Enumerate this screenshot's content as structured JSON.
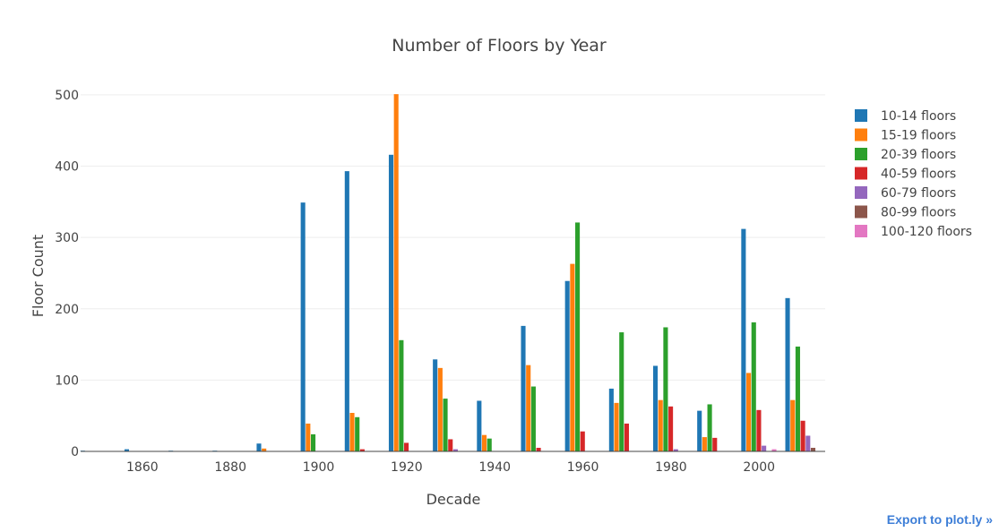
{
  "export_link": "Export to plot.ly »",
  "chart_data": {
    "type": "bar",
    "title": "Number of Floors by Year",
    "xlabel": "Decade",
    "ylabel": "Floor Count",
    "x": [
      1850,
      1860,
      1870,
      1880,
      1890,
      1900,
      1910,
      1920,
      1930,
      1940,
      1950,
      1960,
      1970,
      1980,
      1990,
      2000,
      2010
    ],
    "xticks": [
      1860,
      1880,
      1900,
      1920,
      1940,
      1960,
      1980,
      2000
    ],
    "xlim": [
      1846,
      2015
    ],
    "ylim": [
      0,
      520
    ],
    "yticks": [
      0,
      100,
      200,
      300,
      400,
      500
    ],
    "grid": true,
    "legend_position": "right",
    "series": [
      {
        "name": "10-14 floors",
        "color": "#1f77b4",
        "values": [
          1,
          3,
          1,
          1,
          11,
          349,
          393,
          416,
          129,
          71,
          176,
          239,
          88,
          120,
          57,
          312,
          215
        ]
      },
      {
        "name": "15-19 floors",
        "color": "#ff7f0e",
        "values": [
          0,
          0,
          0,
          0,
          4,
          39,
          54,
          501,
          117,
          23,
          121,
          263,
          68,
          72,
          20,
          110,
          72
        ]
      },
      {
        "name": "20-39 floors",
        "color": "#2ca02c",
        "values": [
          0,
          0,
          0,
          0,
          0,
          24,
          48,
          156,
          74,
          18,
          91,
          321,
          167,
          174,
          66,
          181,
          147
        ]
      },
      {
        "name": "40-59 floors",
        "color": "#d62728",
        "values": [
          0,
          0,
          0,
          0,
          0,
          0,
          3,
          12,
          17,
          0,
          5,
          28,
          39,
          63,
          19,
          58,
          43
        ]
      },
      {
        "name": "60-79 floors",
        "color": "#9467bd",
        "values": [
          0,
          0,
          0,
          0,
          0,
          0,
          0,
          0,
          3,
          0,
          0,
          0,
          0,
          3,
          0,
          8,
          22
        ]
      },
      {
        "name": "80-99 floors",
        "color": "#8c564b",
        "values": [
          0,
          0,
          0,
          0,
          0,
          0,
          0,
          0,
          0,
          0,
          0,
          0,
          0,
          0,
          0,
          0,
          5
        ]
      },
      {
        "name": "100-120 floors",
        "color": "#e377c2",
        "values": [
          0,
          0,
          0,
          0,
          0,
          0,
          0,
          0,
          0,
          0,
          0,
          0,
          0,
          0,
          0,
          3,
          0
        ]
      }
    ]
  }
}
